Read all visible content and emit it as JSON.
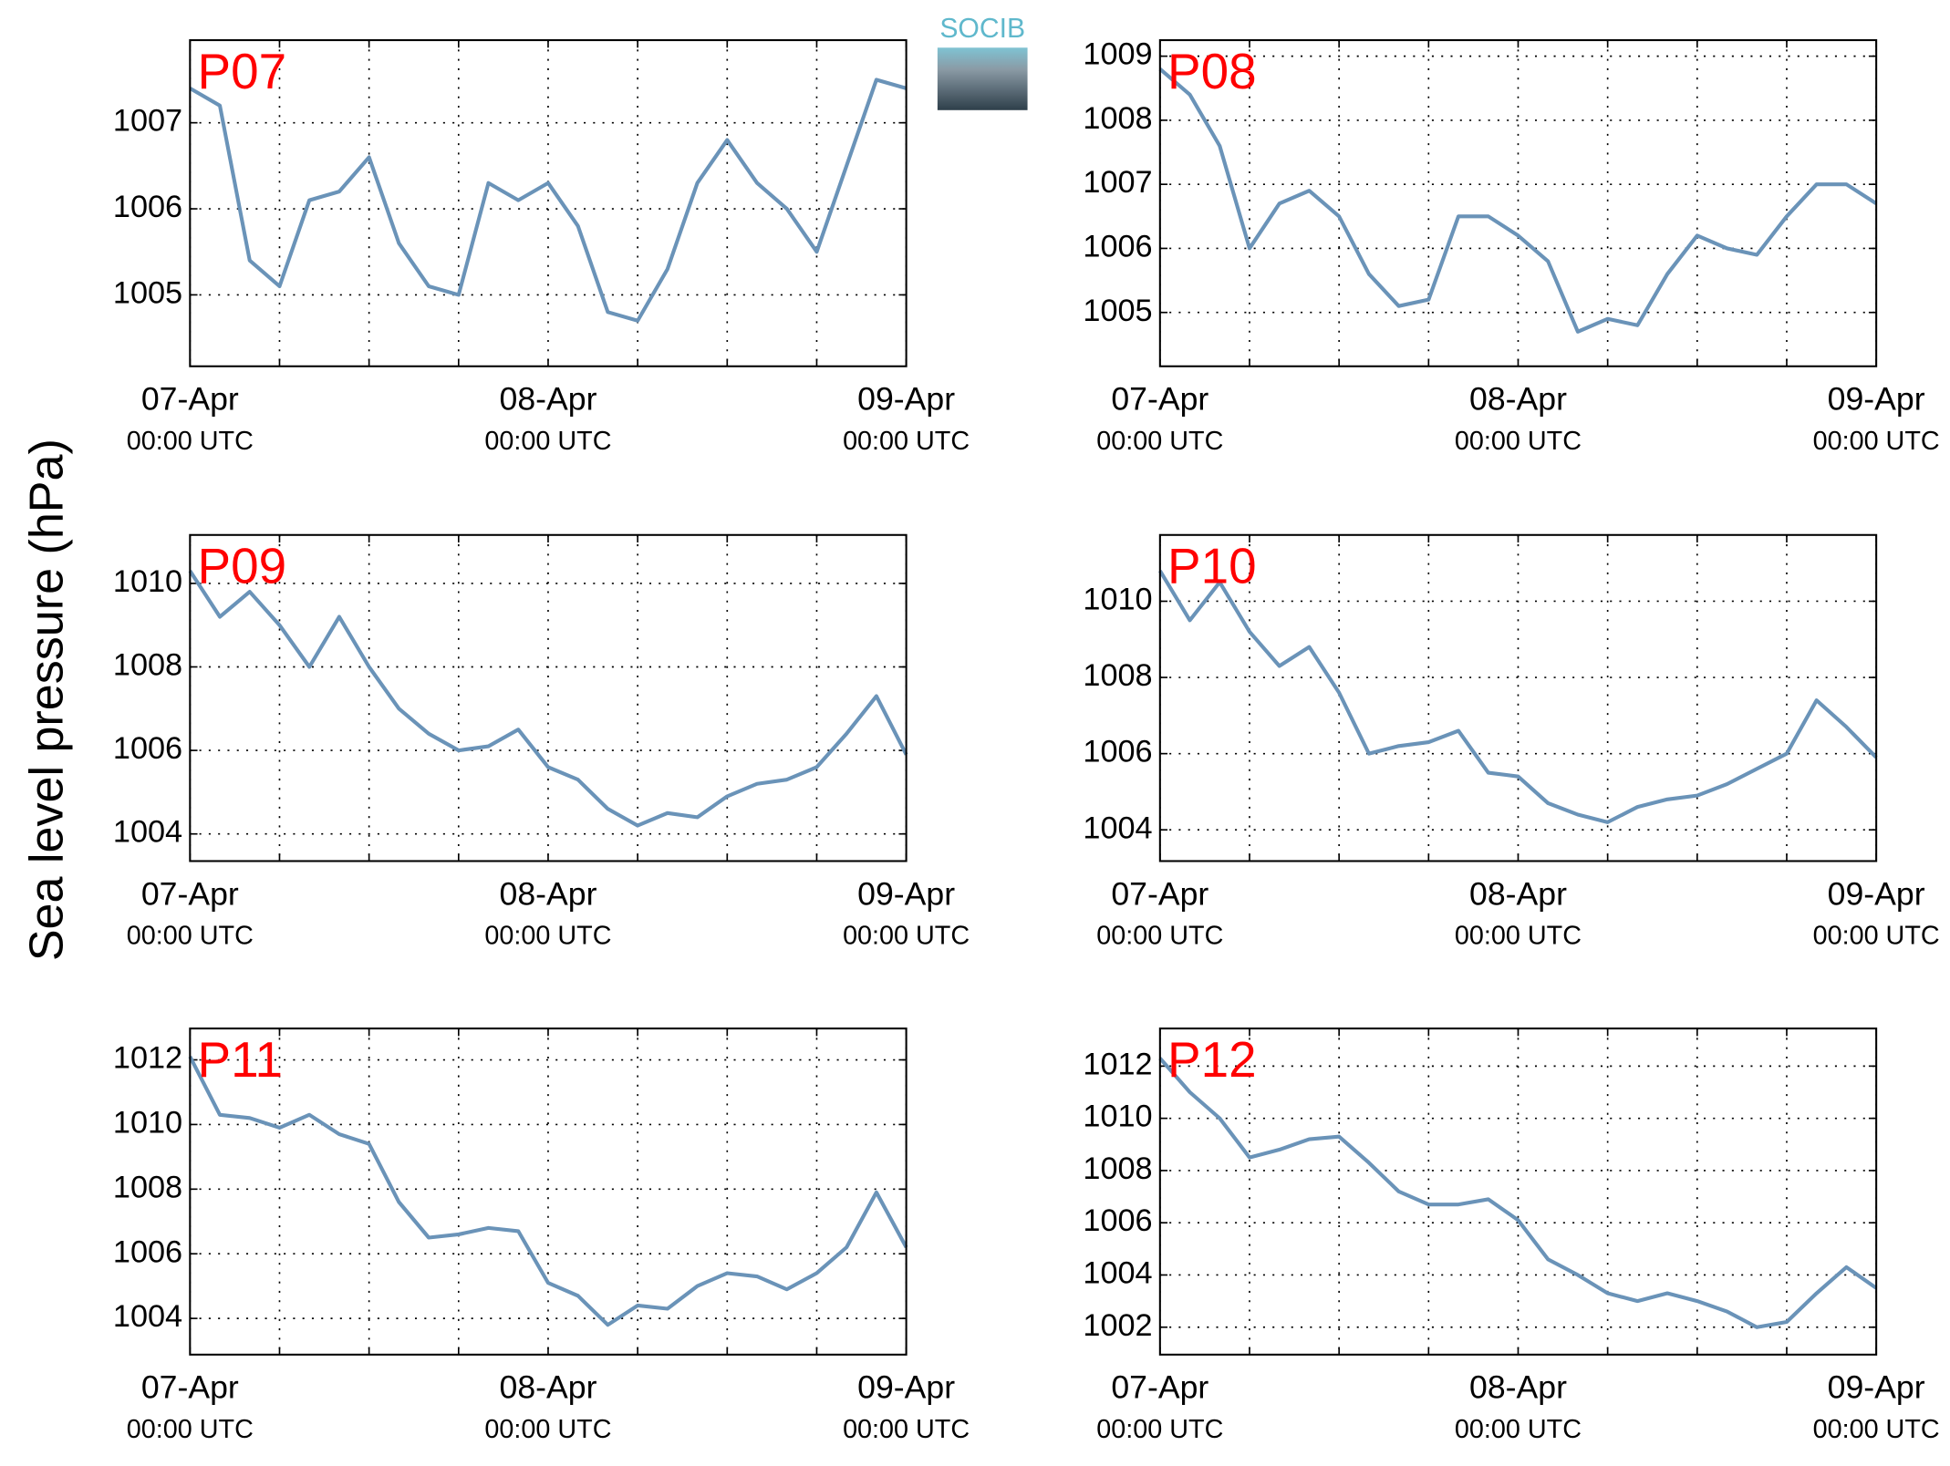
{
  "figure": {
    "ylabel": "Sea level pressure (hPa)",
    "logo": "SOCIB"
  },
  "chart_data": [
    {
      "type": "line",
      "title": "P07",
      "x": [
        0,
        2,
        4,
        6,
        8,
        10,
        12,
        14,
        16,
        18,
        20,
        22,
        24,
        26,
        28,
        30,
        32,
        34,
        36,
        38,
        40,
        42,
        44,
        46,
        48
      ],
      "series": [
        {
          "color": "#6a93b8",
          "values": [
            1007.4,
            1007.2,
            1005.4,
            1005.1,
            1006.1,
            1006.2,
            1006.6,
            1005.6,
            1005.1,
            1005.0,
            1006.3,
            1006.1,
            1006.3,
            1005.8,
            1004.8,
            1004.7,
            1005.3,
            1006.3,
            1006.8,
            1006.3,
            1006.0,
            1005.5,
            1006.5,
            1007.5,
            1007.4
          ]
        }
      ],
      "xlim": [
        0,
        48
      ],
      "ylim": [
        1004.17,
        1007.96
      ],
      "yticks": [
        1005,
        1006,
        1007
      ],
      "xticks": [
        {
          "value": 0,
          "label": "07-Apr",
          "sublabel": "00:00 UTC"
        },
        {
          "value": 6,
          "label": null
        },
        {
          "value": 12,
          "label": null
        },
        {
          "value": 18,
          "label": null
        },
        {
          "value": 24,
          "label": "08-Apr",
          "sublabel": "00:00 UTC"
        },
        {
          "value": 30,
          "label": null
        },
        {
          "value": 36,
          "label": null
        },
        {
          "value": 42,
          "label": null
        },
        {
          "value": 48,
          "label": "09-Apr",
          "sublabel": "00:00 UTC"
        }
      ],
      "grid": true
    },
    {
      "type": "line",
      "title": "P08",
      "x": [
        0,
        2,
        4,
        6,
        8,
        10,
        12,
        14,
        16,
        18,
        20,
        22,
        24,
        26,
        28,
        30,
        32,
        34,
        36,
        38,
        40,
        42,
        44,
        46,
        48
      ],
      "series": [
        {
          "color": "#6a93b8",
          "values": [
            1008.8,
            1008.4,
            1007.6,
            1006.0,
            1006.7,
            1006.9,
            1006.5,
            1005.6,
            1005.1,
            1005.2,
            1006.5,
            1006.5,
            1006.2,
            1005.8,
            1004.7,
            1004.9,
            1004.8,
            1005.6,
            1006.2,
            1006.0,
            1005.9,
            1006.5,
            1007.0,
            1007.0,
            1006.7
          ]
        }
      ],
      "xlim": [
        0,
        48
      ],
      "ylim": [
        1004.16,
        1009.25
      ],
      "yticks": [
        1005,
        1006,
        1007,
        1008,
        1009
      ],
      "xticks": [
        {
          "value": 0,
          "label": "07-Apr",
          "sublabel": "00:00 UTC"
        },
        {
          "value": 6,
          "label": null
        },
        {
          "value": 12,
          "label": null
        },
        {
          "value": 18,
          "label": null
        },
        {
          "value": 24,
          "label": "08-Apr",
          "sublabel": "00:00 UTC"
        },
        {
          "value": 30,
          "label": null
        },
        {
          "value": 36,
          "label": null
        },
        {
          "value": 42,
          "label": null
        },
        {
          "value": 48,
          "label": "09-Apr",
          "sublabel": "00:00 UTC"
        }
      ],
      "grid": true
    },
    {
      "type": "line",
      "title": "P09",
      "x": [
        0,
        2,
        4,
        6,
        8,
        10,
        12,
        14,
        16,
        18,
        20,
        22,
        24,
        26,
        28,
        30,
        32,
        34,
        36,
        38,
        40,
        42,
        44,
        46,
        48
      ],
      "series": [
        {
          "color": "#6a93b8",
          "values": [
            1010.3,
            1009.2,
            1009.8,
            1009.0,
            1008.0,
            1009.2,
            1008.0,
            1007.0,
            1006.4,
            1006.0,
            1006.1,
            1006.5,
            1005.6,
            1005.3,
            1004.6,
            1004.2,
            1004.5,
            1004.4,
            1004.9,
            1005.2,
            1005.3,
            1005.6,
            1006.4,
            1007.3,
            1005.9
          ]
        }
      ],
      "xlim": [
        0,
        48
      ],
      "ylim": [
        1003.35,
        1011.16
      ],
      "yticks": [
        1004,
        1006,
        1008,
        1010
      ],
      "xticks": [
        {
          "value": 0,
          "label": "07-Apr",
          "sublabel": "00:00 UTC"
        },
        {
          "value": 6,
          "label": null
        },
        {
          "value": 12,
          "label": null
        },
        {
          "value": 18,
          "label": null
        },
        {
          "value": 24,
          "label": "08-Apr",
          "sublabel": "00:00 UTC"
        },
        {
          "value": 30,
          "label": null
        },
        {
          "value": 36,
          "label": null
        },
        {
          "value": 42,
          "label": null
        },
        {
          "value": 48,
          "label": "09-Apr",
          "sublabel": "00:00 UTC"
        }
      ],
      "grid": true
    },
    {
      "type": "line",
      "title": "P10",
      "x": [
        0,
        2,
        4,
        6,
        8,
        10,
        12,
        14,
        16,
        18,
        20,
        22,
        24,
        26,
        28,
        30,
        32,
        34,
        36,
        38,
        40,
        42,
        44,
        46,
        48
      ],
      "series": [
        {
          "color": "#6a93b8",
          "values": [
            1010.8,
            1009.5,
            1010.5,
            1009.2,
            1008.3,
            1008.8,
            1007.6,
            1006.0,
            1006.2,
            1006.3,
            1006.6,
            1005.5,
            1005.4,
            1004.7,
            1004.4,
            1004.2,
            1004.6,
            1004.8,
            1004.9,
            1005.2,
            1005.6,
            1006.0,
            1007.4,
            1006.7,
            1005.9
          ]
        }
      ],
      "xlim": [
        0,
        48
      ],
      "ylim": [
        1003.18,
        1011.74
      ],
      "yticks": [
        1004,
        1006,
        1008,
        1010
      ],
      "xticks": [
        {
          "value": 0,
          "label": "07-Apr",
          "sublabel": "00:00 UTC"
        },
        {
          "value": 6,
          "label": null
        },
        {
          "value": 12,
          "label": null
        },
        {
          "value": 18,
          "label": null
        },
        {
          "value": 24,
          "label": "08-Apr",
          "sublabel": "00:00 UTC"
        },
        {
          "value": 30,
          "label": null
        },
        {
          "value": 36,
          "label": null
        },
        {
          "value": 42,
          "label": null
        },
        {
          "value": 48,
          "label": "09-Apr",
          "sublabel": "00:00 UTC"
        }
      ],
      "grid": true
    },
    {
      "type": "line",
      "title": "P11",
      "x": [
        0,
        2,
        4,
        6,
        8,
        10,
        12,
        14,
        16,
        18,
        20,
        22,
        24,
        26,
        28,
        30,
        32,
        34,
        36,
        38,
        40,
        42,
        44,
        46,
        48
      ],
      "series": [
        {
          "color": "#6a93b8",
          "values": [
            1012.1,
            1010.3,
            1010.2,
            1009.9,
            1010.3,
            1009.7,
            1009.4,
            1007.6,
            1006.5,
            1006.6,
            1006.8,
            1006.7,
            1005.1,
            1004.7,
            1003.8,
            1004.4,
            1004.3,
            1005.0,
            1005.4,
            1005.3,
            1004.9,
            1005.4,
            1006.2,
            1007.9,
            1006.2
          ]
        }
      ],
      "xlim": [
        0,
        48
      ],
      "ylim": [
        1002.88,
        1012.97
      ],
      "yticks": [
        1004,
        1006,
        1008,
        1010,
        1012
      ],
      "xticks": [
        {
          "value": 0,
          "label": "07-Apr",
          "sublabel": "00:00 UTC"
        },
        {
          "value": 6,
          "label": null
        },
        {
          "value": 12,
          "label": null
        },
        {
          "value": 18,
          "label": null
        },
        {
          "value": 24,
          "label": "08-Apr",
          "sublabel": "00:00 UTC"
        },
        {
          "value": 30,
          "label": null
        },
        {
          "value": 36,
          "label": null
        },
        {
          "value": 42,
          "label": null
        },
        {
          "value": 48,
          "label": "09-Apr",
          "sublabel": "00:00 UTC"
        }
      ],
      "grid": true
    },
    {
      "type": "line",
      "title": "P12",
      "x": [
        0,
        2,
        4,
        6,
        8,
        10,
        12,
        14,
        16,
        18,
        20,
        22,
        24,
        26,
        28,
        30,
        32,
        34,
        36,
        38,
        40,
        42,
        44,
        46,
        48
      ],
      "series": [
        {
          "color": "#6a93b8",
          "values": [
            1012.3,
            1011.0,
            1010.0,
            1008.5,
            1008.8,
            1009.2,
            1009.3,
            1008.3,
            1007.2,
            1006.7,
            1006.7,
            1006.9,
            1006.1,
            1004.6,
            1004.0,
            1003.3,
            1003.0,
            1003.3,
            1003.0,
            1002.6,
            1002.0,
            1002.2,
            1003.3,
            1004.3,
            1003.5
          ]
        }
      ],
      "xlim": [
        0,
        48
      ],
      "ylim": [
        1000.95,
        1013.44
      ],
      "yticks": [
        1002,
        1004,
        1006,
        1008,
        1010,
        1012
      ],
      "xticks": [
        {
          "value": 0,
          "label": "07-Apr",
          "sublabel": "00:00 UTC"
        },
        {
          "value": 6,
          "label": null
        },
        {
          "value": 12,
          "label": null
        },
        {
          "value": 18,
          "label": null
        },
        {
          "value": 24,
          "label": "08-Apr",
          "sublabel": "00:00 UTC"
        },
        {
          "value": 30,
          "label": null
        },
        {
          "value": 36,
          "label": null
        },
        {
          "value": 42,
          "label": null
        },
        {
          "value": 48,
          "label": "09-Apr",
          "sublabel": "00:00 UTC"
        }
      ],
      "grid": true
    }
  ]
}
